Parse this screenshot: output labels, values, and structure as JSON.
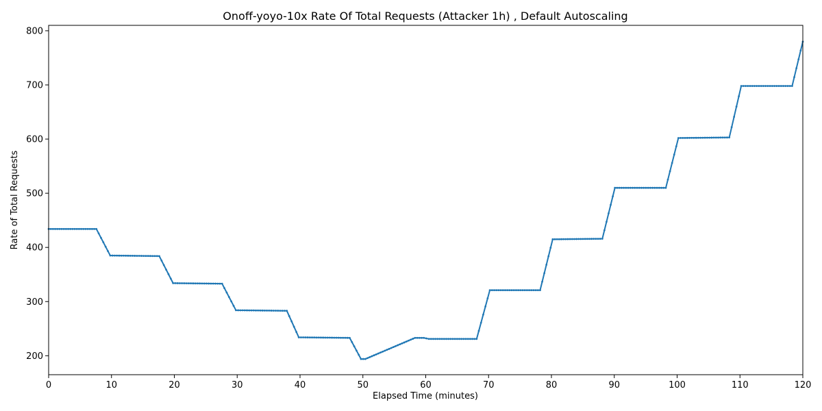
{
  "chart_data": {
    "type": "line",
    "title": "Onoff-yoyo-10x Rate Of Total Requests (Attacker 1h) , Default Autoscaling",
    "xlabel": "Elapsed Time (minutes)",
    "ylabel": "Rate of Total Requests",
    "xlim": [
      0,
      120
    ],
    "ylim": [
      165,
      810
    ],
    "x_ticks": [
      0,
      10,
      20,
      30,
      40,
      50,
      60,
      70,
      80,
      90,
      100,
      110,
      120
    ],
    "y_ticks": [
      200,
      300,
      400,
      500,
      600,
      700,
      800
    ],
    "grid": false,
    "colors": {
      "series": "#1f77b4"
    },
    "series": [
      {
        "points": [
          [
            0,
            434
          ],
          [
            7.6,
            434
          ],
          [
            9.8,
            385
          ],
          [
            17.6,
            384
          ],
          [
            19.8,
            334
          ],
          [
            27.6,
            333
          ],
          [
            29.8,
            284
          ],
          [
            37.9,
            283
          ],
          [
            39.8,
            234
          ],
          [
            47.9,
            233
          ],
          [
            49.7,
            194
          ],
          [
            50.4,
            194
          ],
          [
            58.3,
            233
          ],
          [
            59.7,
            233
          ],
          [
            60.5,
            231
          ],
          [
            68.1,
            231
          ],
          [
            70.2,
            321
          ],
          [
            78.2,
            321
          ],
          [
            80.2,
            415
          ],
          [
            88.1,
            416
          ],
          [
            90.1,
            510
          ],
          [
            98.2,
            510
          ],
          [
            100.2,
            602
          ],
          [
            108.3,
            603
          ],
          [
            110.2,
            698
          ],
          [
            118.3,
            698
          ],
          [
            120,
            780
          ]
        ]
      }
    ]
  }
}
